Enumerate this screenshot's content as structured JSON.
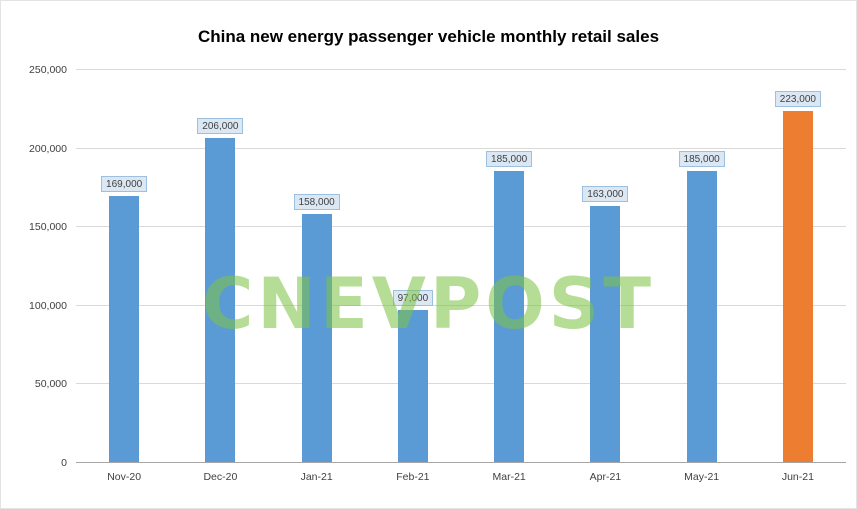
{
  "title": "China new energy passenger vehicle monthly retail sales",
  "watermark": "CNEVPOST",
  "chart_data": {
    "type": "bar",
    "title": "China new energy passenger vehicle monthly retail sales",
    "categories": [
      "Nov-20",
      "Dec-20",
      "Jan-21",
      "Feb-21",
      "Mar-21",
      "Apr-21",
      "May-21",
      "Jun-21"
    ],
    "values": [
      169000,
      206000,
      158000,
      97000,
      185000,
      163000,
      185000,
      223000
    ],
    "data_labels": [
      "169,000",
      "206,000",
      "158,000",
      "97,000",
      "185,000",
      "163,000",
      "185,000",
      "223,000"
    ],
    "xlabel": "",
    "ylabel": "",
    "ylim": [
      0,
      250000
    ],
    "ytick_interval": 50000,
    "ytick_labels": [
      "0",
      "50,000",
      "100,000",
      "150,000",
      "200,000",
      "250,000"
    ],
    "grid": true,
    "legend": "none",
    "bar_color": "#5b9bd5",
    "highlight_color": "#ed7d31",
    "highlight_index": 7
  }
}
